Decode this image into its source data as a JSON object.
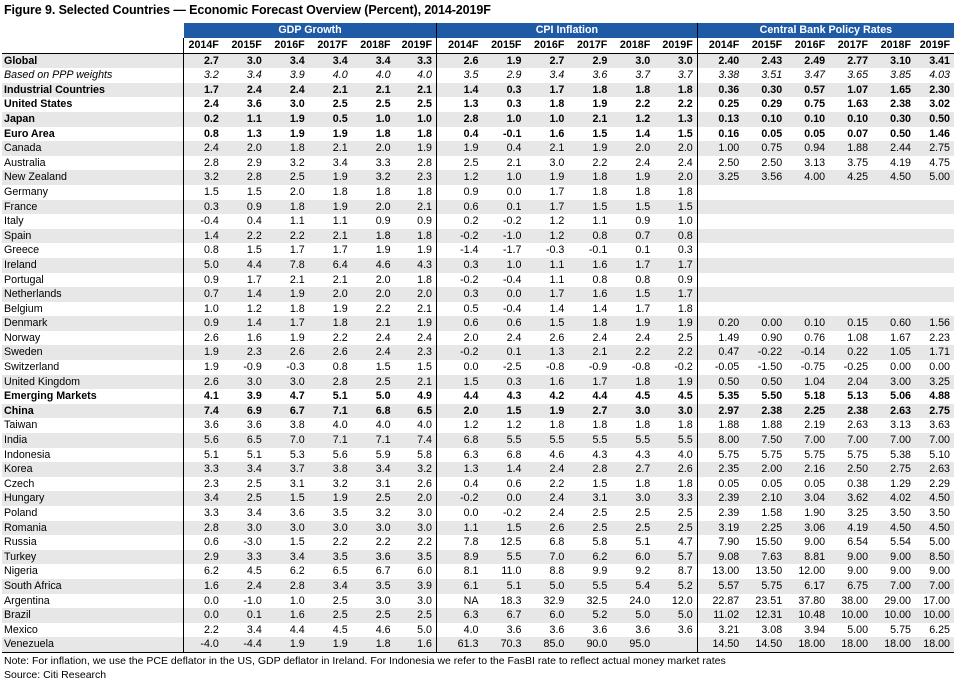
{
  "title": "Figure 9. Selected Countries — Economic Forecast Overview (Percent), 2014-2019F",
  "groups": [
    "GDP Growth",
    "CPI Inflation",
    "Central Bank Policy Rates"
  ],
  "years": [
    "2014F",
    "2015F",
    "2016F",
    "2017F",
    "2018F",
    "2019F"
  ],
  "rows": [
    {
      "name": "Global",
      "style": "bold",
      "gdp": [
        "2.7",
        "3.0",
        "3.4",
        "3.4",
        "3.4",
        "3.3"
      ],
      "cpi": [
        "2.6",
        "1.9",
        "2.7",
        "2.9",
        "3.0",
        "3.0"
      ],
      "rates": [
        "2.40",
        "2.43",
        "2.49",
        "2.77",
        "3.10",
        "3.41"
      ]
    },
    {
      "name": "Based on PPP weights",
      "style": "ital",
      "gdp": [
        "3.2",
        "3.4",
        "3.9",
        "4.0",
        "4.0",
        "4.0"
      ],
      "cpi": [
        "3.5",
        "2.9",
        "3.4",
        "3.6",
        "3.7",
        "3.7"
      ],
      "rates": [
        "3.38",
        "3.51",
        "3.47",
        "3.65",
        "3.85",
        "4.03"
      ]
    },
    {
      "name": "Industrial Countries",
      "style": "bold",
      "gdp": [
        "1.7",
        "2.4",
        "2.4",
        "2.1",
        "2.1",
        "2.1"
      ],
      "cpi": [
        "1.4",
        "0.3",
        "1.7",
        "1.8",
        "1.8",
        "1.8"
      ],
      "rates": [
        "0.36",
        "0.30",
        "0.57",
        "1.07",
        "1.65",
        "2.30"
      ]
    },
    {
      "name": "United States",
      "style": "bold",
      "gdp": [
        "2.4",
        "3.6",
        "3.0",
        "2.5",
        "2.5",
        "2.5"
      ],
      "cpi": [
        "1.3",
        "0.3",
        "1.8",
        "1.9",
        "2.2",
        "2.2"
      ],
      "rates": [
        "0.25",
        "0.29",
        "0.75",
        "1.63",
        "2.38",
        "3.02"
      ]
    },
    {
      "name": "Japan",
      "style": "bold",
      "gdp": [
        "0.2",
        "1.1",
        "1.9",
        "0.5",
        "1.0",
        "1.0"
      ],
      "cpi": [
        "2.8",
        "1.0",
        "1.0",
        "2.1",
        "1.2",
        "1.3"
      ],
      "rates": [
        "0.13",
        "0.10",
        "0.10",
        "0.10",
        "0.30",
        "0.50"
      ]
    },
    {
      "name": "Euro Area",
      "style": "bold",
      "gdp": [
        "0.8",
        "1.3",
        "1.9",
        "1.9",
        "1.8",
        "1.8"
      ],
      "cpi": [
        "0.4",
        "-0.1",
        "1.6",
        "1.5",
        "1.4",
        "1.5"
      ],
      "rates": [
        "0.16",
        "0.05",
        "0.05",
        "0.07",
        "0.50",
        "1.46"
      ]
    },
    {
      "name": "Canada",
      "style": "",
      "gdp": [
        "2.4",
        "2.0",
        "1.8",
        "2.1",
        "2.0",
        "1.9"
      ],
      "cpi": [
        "1.9",
        "0.4",
        "2.1",
        "1.9",
        "2.0",
        "2.0"
      ],
      "rates": [
        "1.00",
        "0.75",
        "0.94",
        "1.88",
        "2.44",
        "2.75"
      ]
    },
    {
      "name": "Australia",
      "style": "",
      "gdp": [
        "2.8",
        "2.9",
        "3.2",
        "3.4",
        "3.3",
        "2.8"
      ],
      "cpi": [
        "2.5",
        "2.1",
        "3.0",
        "2.2",
        "2.4",
        "2.4"
      ],
      "rates": [
        "2.50",
        "2.50",
        "3.13",
        "3.75",
        "4.19",
        "4.75"
      ]
    },
    {
      "name": "New Zealand",
      "style": "",
      "gdp": [
        "3.2",
        "2.8",
        "2.5",
        "1.9",
        "3.2",
        "2.3"
      ],
      "cpi": [
        "1.2",
        "1.0",
        "1.9",
        "1.8",
        "1.9",
        "2.0"
      ],
      "rates": [
        "3.25",
        "3.56",
        "4.00",
        "4.25",
        "4.50",
        "5.00"
      ]
    },
    {
      "name": "Germany",
      "style": "",
      "gdp": [
        "1.5",
        "1.5",
        "2.0",
        "1.8",
        "1.8",
        "1.8"
      ],
      "cpi": [
        "0.9",
        "0.0",
        "1.7",
        "1.8",
        "1.8",
        "1.8"
      ],
      "rates": [
        "",
        "",
        "",
        "",
        "",
        ""
      ]
    },
    {
      "name": "France",
      "style": "",
      "gdp": [
        "0.3",
        "0.9",
        "1.8",
        "1.9",
        "2.0",
        "2.1"
      ],
      "cpi": [
        "0.6",
        "0.1",
        "1.7",
        "1.5",
        "1.5",
        "1.5"
      ],
      "rates": [
        "",
        "",
        "",
        "",
        "",
        ""
      ]
    },
    {
      "name": "Italy",
      "style": "",
      "gdp": [
        "-0.4",
        "0.4",
        "1.1",
        "1.1",
        "0.9",
        "0.9"
      ],
      "cpi": [
        "0.2",
        "-0.2",
        "1.2",
        "1.1",
        "0.9",
        "1.0"
      ],
      "rates": [
        "",
        "",
        "",
        "",
        "",
        ""
      ]
    },
    {
      "name": "Spain",
      "style": "",
      "gdp": [
        "1.4",
        "2.2",
        "2.2",
        "2.1",
        "1.8",
        "1.8"
      ],
      "cpi": [
        "-0.2",
        "-1.0",
        "1.2",
        "0.8",
        "0.7",
        "0.8"
      ],
      "rates": [
        "",
        "",
        "",
        "",
        "",
        ""
      ]
    },
    {
      "name": "Greece",
      "style": "",
      "gdp": [
        "0.8",
        "1.5",
        "1.7",
        "1.7",
        "1.9",
        "1.9"
      ],
      "cpi": [
        "-1.4",
        "-1.7",
        "-0.3",
        "-0.1",
        "0.1",
        "0.3"
      ],
      "rates": [
        "",
        "",
        "",
        "",
        "",
        ""
      ]
    },
    {
      "name": "Ireland",
      "style": "",
      "gdp": [
        "5.0",
        "4.4",
        "7.8",
        "6.4",
        "4.6",
        "4.3"
      ],
      "cpi": [
        "0.3",
        "1.0",
        "1.1",
        "1.6",
        "1.7",
        "1.7"
      ],
      "rates": [
        "",
        "",
        "",
        "",
        "",
        ""
      ]
    },
    {
      "name": "Portugal",
      "style": "",
      "gdp": [
        "0.9",
        "1.7",
        "2.1",
        "2.1",
        "2.0",
        "1.8"
      ],
      "cpi": [
        "-0.2",
        "-0.4",
        "1.1",
        "0.8",
        "0.8",
        "0.9"
      ],
      "rates": [
        "",
        "",
        "",
        "",
        "",
        ""
      ]
    },
    {
      "name": "Netherlands",
      "style": "",
      "gdp": [
        "0.7",
        "1.4",
        "1.9",
        "2.0",
        "2.0",
        "2.0"
      ],
      "cpi": [
        "0.3",
        "0.0",
        "1.7",
        "1.6",
        "1.5",
        "1.7"
      ],
      "rates": [
        "",
        "",
        "",
        "",
        "",
        ""
      ]
    },
    {
      "name": "Belgium",
      "style": "",
      "gdp": [
        "1.0",
        "1.2",
        "1.8",
        "1.9",
        "2.2",
        "2.1"
      ],
      "cpi": [
        "0.5",
        "-0.4",
        "1.4",
        "1.4",
        "1.7",
        "1.8"
      ],
      "rates": [
        "",
        "",
        "",
        "",
        "",
        ""
      ]
    },
    {
      "name": "Denmark",
      "style": "",
      "gdp": [
        "0.9",
        "1.4",
        "1.7",
        "1.8",
        "2.1",
        "1.9"
      ],
      "cpi": [
        "0.6",
        "0.6",
        "1.5",
        "1.8",
        "1.9",
        "1.9"
      ],
      "rates": [
        "0.20",
        "0.00",
        "0.10",
        "0.15",
        "0.60",
        "1.56"
      ]
    },
    {
      "name": "Norway",
      "style": "",
      "gdp": [
        "2.6",
        "1.6",
        "1.9",
        "2.2",
        "2.4",
        "2.4"
      ],
      "cpi": [
        "2.0",
        "2.4",
        "2.6",
        "2.4",
        "2.4",
        "2.5"
      ],
      "rates": [
        "1.49",
        "0.90",
        "0.76",
        "1.08",
        "1.67",
        "2.23"
      ]
    },
    {
      "name": "Sweden",
      "style": "",
      "gdp": [
        "1.9",
        "2.3",
        "2.6",
        "2.6",
        "2.4",
        "2.3"
      ],
      "cpi": [
        "-0.2",
        "0.1",
        "1.3",
        "2.1",
        "2.2",
        "2.2"
      ],
      "rates": [
        "0.47",
        "-0.22",
        "-0.14",
        "0.22",
        "1.05",
        "1.71"
      ]
    },
    {
      "name": "Switzerland",
      "style": "",
      "gdp": [
        "1.9",
        "-0.9",
        "-0.3",
        "0.8",
        "1.5",
        "1.5"
      ],
      "cpi": [
        "0.0",
        "-2.5",
        "-0.8",
        "-0.9",
        "-0.8",
        "-0.2"
      ],
      "rates": [
        "-0.05",
        "-1.50",
        "-0.75",
        "-0.25",
        "0.00",
        "0.00"
      ]
    },
    {
      "name": "United Kingdom",
      "style": "",
      "gdp": [
        "2.6",
        "3.0",
        "3.0",
        "2.8",
        "2.5",
        "2.1"
      ],
      "cpi": [
        "1.5",
        "0.3",
        "1.6",
        "1.7",
        "1.8",
        "1.9"
      ],
      "rates": [
        "0.50",
        "0.50",
        "1.04",
        "2.04",
        "3.00",
        "3.25"
      ]
    },
    {
      "name": "Emerging Markets",
      "style": "bold",
      "gdp": [
        "4.1",
        "3.9",
        "4.7",
        "5.1",
        "5.0",
        "4.9"
      ],
      "cpi": [
        "4.4",
        "4.3",
        "4.2",
        "4.4",
        "4.5",
        "4.5"
      ],
      "rates": [
        "5.35",
        "5.50",
        "5.18",
        "5.13",
        "5.06",
        "4.88"
      ]
    },
    {
      "name": "China",
      "style": "bold",
      "gdp": [
        "7.4",
        "6.9",
        "6.7",
        "7.1",
        "6.8",
        "6.5"
      ],
      "cpi": [
        "2.0",
        "1.5",
        "1.9",
        "2.7",
        "3.0",
        "3.0"
      ],
      "rates": [
        "2.97",
        "2.38",
        "2.25",
        "2.38",
        "2.63",
        "2.75"
      ]
    },
    {
      "name": "Taiwan",
      "style": "",
      "gdp": [
        "3.6",
        "3.6",
        "3.8",
        "4.0",
        "4.0",
        "4.0"
      ],
      "cpi": [
        "1.2",
        "1.2",
        "1.8",
        "1.8",
        "1.8",
        "1.8"
      ],
      "rates": [
        "1.88",
        "1.88",
        "2.19",
        "2.63",
        "3.13",
        "3.63"
      ]
    },
    {
      "name": "India",
      "style": "",
      "gdp": [
        "5.6",
        "6.5",
        "7.0",
        "7.1",
        "7.1",
        "7.4"
      ],
      "cpi": [
        "6.8",
        "5.5",
        "5.5",
        "5.5",
        "5.5",
        "5.5"
      ],
      "rates": [
        "8.00",
        "7.50",
        "7.00",
        "7.00",
        "7.00",
        "7.00"
      ]
    },
    {
      "name": "Indonesia",
      "style": "",
      "gdp": [
        "5.1",
        "5.1",
        "5.3",
        "5.6",
        "5.9",
        "5.8"
      ],
      "cpi": [
        "6.3",
        "6.8",
        "4.6",
        "4.3",
        "4.3",
        "4.0"
      ],
      "rates": [
        "5.75",
        "5.75",
        "5.75",
        "5.75",
        "5.38",
        "5.10"
      ]
    },
    {
      "name": "Korea",
      "style": "",
      "gdp": [
        "3.3",
        "3.4",
        "3.7",
        "3.8",
        "3.4",
        "3.2"
      ],
      "cpi": [
        "1.3",
        "1.4",
        "2.4",
        "2.8",
        "2.7",
        "2.6"
      ],
      "rates": [
        "2.35",
        "2.00",
        "2.16",
        "2.50",
        "2.75",
        "2.63"
      ]
    },
    {
      "name": "Czech",
      "style": "",
      "gdp": [
        "2.3",
        "2.5",
        "3.1",
        "3.2",
        "3.1",
        "2.6"
      ],
      "cpi": [
        "0.4",
        "0.6",
        "2.2",
        "1.5",
        "1.8",
        "1.8"
      ],
      "rates": [
        "0.05",
        "0.05",
        "0.05",
        "0.38",
        "1.29",
        "2.29"
      ]
    },
    {
      "name": "Hungary",
      "style": "",
      "gdp": [
        "3.4",
        "2.5",
        "1.5",
        "1.9",
        "2.5",
        "2.0"
      ],
      "cpi": [
        "-0.2",
        "0.0",
        "2.4",
        "3.1",
        "3.0",
        "3.3"
      ],
      "rates": [
        "2.39",
        "2.10",
        "3.04",
        "3.62",
        "4.02",
        "4.50"
      ]
    },
    {
      "name": "Poland",
      "style": "",
      "gdp": [
        "3.3",
        "3.4",
        "3.6",
        "3.5",
        "3.2",
        "3.0"
      ],
      "cpi": [
        "0.0",
        "-0.2",
        "2.4",
        "2.5",
        "2.5",
        "2.5"
      ],
      "rates": [
        "2.39",
        "1.58",
        "1.90",
        "3.25",
        "3.50",
        "3.50"
      ]
    },
    {
      "name": "Romania",
      "style": "",
      "gdp": [
        "2.8",
        "3.0",
        "3.0",
        "3.0",
        "3.0",
        "3.0"
      ],
      "cpi": [
        "1.1",
        "1.5",
        "2.6",
        "2.5",
        "2.5",
        "2.5"
      ],
      "rates": [
        "3.19",
        "2.25",
        "3.06",
        "4.19",
        "4.50",
        "4.50"
      ]
    },
    {
      "name": "Russia",
      "style": "",
      "gdp": [
        "0.6",
        "-3.0",
        "1.5",
        "2.2",
        "2.2",
        "2.2"
      ],
      "cpi": [
        "7.8",
        "12.5",
        "6.8",
        "5.8",
        "5.1",
        "4.7"
      ],
      "rates": [
        "7.90",
        "15.50",
        "9.00",
        "6.54",
        "5.54",
        "5.00"
      ]
    },
    {
      "name": "Turkey",
      "style": "",
      "gdp": [
        "2.9",
        "3.3",
        "3.4",
        "3.5",
        "3.6",
        "3.5"
      ],
      "cpi": [
        "8.9",
        "5.5",
        "7.0",
        "6.2",
        "6.0",
        "5.7"
      ],
      "rates": [
        "9.08",
        "7.63",
        "8.81",
        "9.00",
        "9.00",
        "8.50"
      ]
    },
    {
      "name": "Nigeria",
      "style": "",
      "gdp": [
        "6.2",
        "4.5",
        "6.2",
        "6.5",
        "6.7",
        "6.0"
      ],
      "cpi": [
        "8.1",
        "11.0",
        "8.8",
        "9.9",
        "9.2",
        "8.7"
      ],
      "rates": [
        "13.00",
        "13.50",
        "12.00",
        "9.00",
        "9.00",
        "9.00"
      ]
    },
    {
      "name": "South Africa",
      "style": "",
      "gdp": [
        "1.6",
        "2.4",
        "2.8",
        "3.4",
        "3.5",
        "3.9"
      ],
      "cpi": [
        "6.1",
        "5.1",
        "5.0",
        "5.5",
        "5.4",
        "5.2"
      ],
      "rates": [
        "5.57",
        "5.75",
        "6.17",
        "6.75",
        "7.00",
        "7.00"
      ]
    },
    {
      "name": "Argentina",
      "style": "",
      "gdp": [
        "0.0",
        "-1.0",
        "1.0",
        "2.5",
        "3.0",
        "3.0"
      ],
      "cpi": [
        "NA",
        "18.3",
        "32.9",
        "32.5",
        "24.0",
        "12.0"
      ],
      "rates": [
        "22.87",
        "23.51",
        "37.80",
        "38.00",
        "29.00",
        "17.00"
      ]
    },
    {
      "name": "Brazil",
      "style": "",
      "gdp": [
        "0.0",
        "0.1",
        "1.6",
        "2.5",
        "2.5",
        "2.5"
      ],
      "cpi": [
        "6.3",
        "6.7",
        "6.0",
        "5.2",
        "5.0",
        "5.0"
      ],
      "rates": [
        "11.02",
        "12.31",
        "10.48",
        "10.00",
        "10.00",
        "10.00"
      ]
    },
    {
      "name": "Mexico",
      "style": "",
      "gdp": [
        "2.2",
        "3.4",
        "4.4",
        "4.5",
        "4.6",
        "5.0"
      ],
      "cpi": [
        "4.0",
        "3.6",
        "3.6",
        "3.6",
        "3.6",
        "3.6"
      ],
      "rates": [
        "3.21",
        "3.08",
        "3.94",
        "5.00",
        "5.75",
        "6.25"
      ]
    },
    {
      "name": "Venezuela",
      "style": "",
      "gdp": [
        "-4.0",
        "-4.4",
        "1.9",
        "1.9",
        "1.8",
        "1.6"
      ],
      "cpi": [
        "61.3",
        "70.3",
        "85.0",
        "90.0",
        "95.0",
        ""
      ],
      "rates": [
        "14.50",
        "14.50",
        "18.00",
        "18.00",
        "18.00",
        "18.00"
      ]
    }
  ],
  "notes": {
    "note": "Note: For inflation, we use the PCE deflator in the US, GDP deflator in Ireland. For Indonesia we refer to the FasBI rate to reflect actual money market rates",
    "source": "Source: Citi Research"
  }
}
